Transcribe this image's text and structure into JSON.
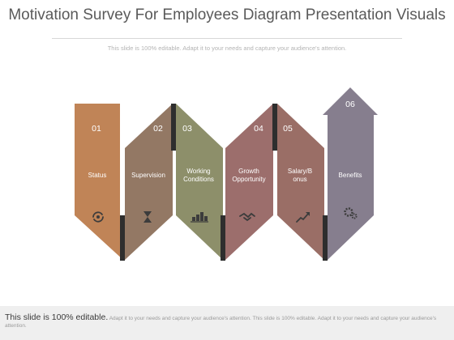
{
  "title": "Motivation Survey For Employees Diagram Presentation Visuals",
  "subtitle": "This slide is 100% editable. Adapt it to your needs and capture your audience's attention.",
  "steps": [
    {
      "number": "01",
      "label": "Status",
      "icon": "refresh-cycle-icon",
      "color": "#c08457"
    },
    {
      "number": "02",
      "label": "Supervision",
      "icon": "hourglass-icon",
      "color": "#937864"
    },
    {
      "number": "03",
      "label": "Working Conditions",
      "icon": "bar-chart-people-icon",
      "color": "#8d8f6a"
    },
    {
      "number": "04",
      "label": "Growth Opportunity",
      "icon": "handshake-icon",
      "color": "#9c6e6c"
    },
    {
      "number": "05",
      "label": "Salary/B onus",
      "icon": "growth-chart-icon",
      "color": "#9a6e66"
    },
    {
      "number": "06",
      "label": "Benefits",
      "icon": "gears-icon",
      "color": "#867e8e"
    }
  ],
  "footer": {
    "strong": "This slide is 100% editable.",
    "rest": " Adapt it to your needs and capture your audience's attention. This slide is 100% editable. Adapt it to your needs and capture your audience's attention."
  }
}
